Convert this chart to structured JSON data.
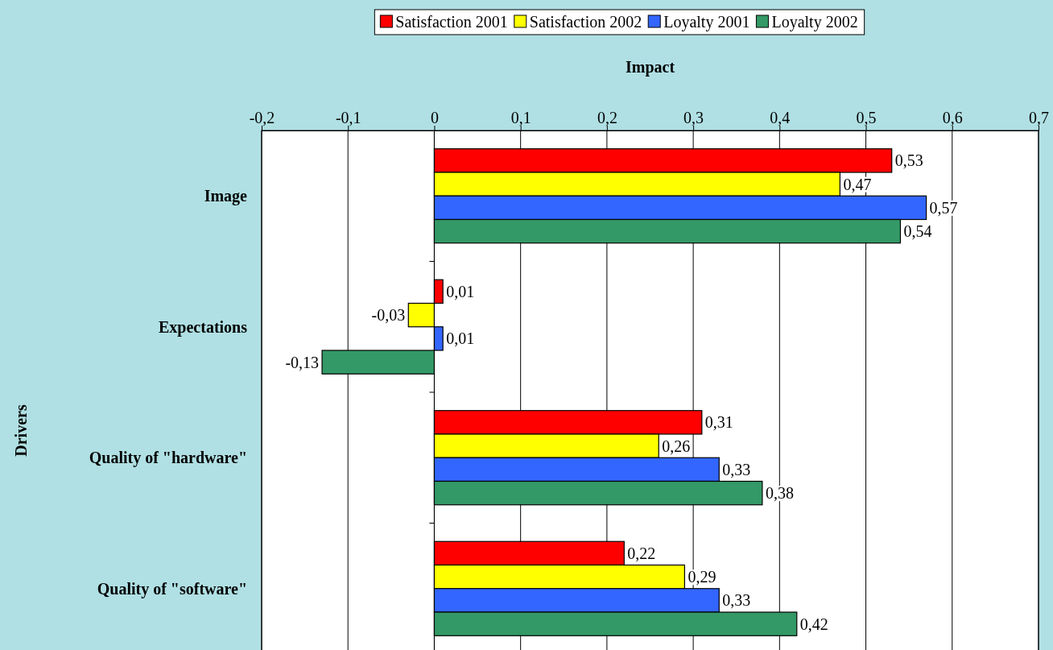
{
  "chart_data": {
    "type": "bar",
    "orientation": "horizontal",
    "xlabel": "Impact",
    "ylabel": "Drivers",
    "categories": [
      "Image",
      "Expectations",
      "Quality of \"hardware\"",
      "Quality of \"software\""
    ],
    "series": [
      {
        "name": "Satisfaction 2001",
        "color": "#ff0000",
        "values": [
          0.53,
          0.01,
          0.31,
          0.22
        ],
        "value_labels": [
          "0,53",
          "0,01",
          "0,31",
          "0,22"
        ]
      },
      {
        "name": "Satisfaction 2002",
        "color": "#ffff00",
        "values": [
          0.47,
          -0.03,
          0.26,
          0.29
        ],
        "value_labels": [
          "0,47",
          "-0,03",
          "0,26",
          "0,29"
        ]
      },
      {
        "name": "Loyalty 2001",
        "color": "#3366ff",
        "values": [
          0.57,
          0.01,
          0.33,
          0.33
        ],
        "value_labels": [
          "0,57",
          "0,01",
          "0,33",
          "0,33"
        ]
      },
      {
        "name": "Loyalty 2002",
        "color": "#339966",
        "values": [
          0.54,
          -0.13,
          0.38,
          0.42
        ],
        "value_labels": [
          "0,54",
          "-0,13",
          "0,38",
          "0,42"
        ]
      }
    ],
    "xlim": [
      -0.2,
      0.7
    ],
    "xticks": [
      {
        "value": -0.2,
        "label": "-0,2"
      },
      {
        "value": -0.1,
        "label": "-0,1"
      },
      0,
      {
        "value": 0.1,
        "label": "0,1"
      },
      {
        "value": 0.2,
        "label": "0,2"
      },
      {
        "value": 0.3,
        "label": "0,3"
      },
      {
        "value": 0.4,
        "label": "0,4"
      },
      {
        "value": 0.5,
        "label": "0,5"
      },
      {
        "value": 0.6,
        "label": "0,6"
      },
      {
        "value": 0.7,
        "label": "0,7"
      }
    ],
    "grid": "x",
    "legend": "top"
  }
}
